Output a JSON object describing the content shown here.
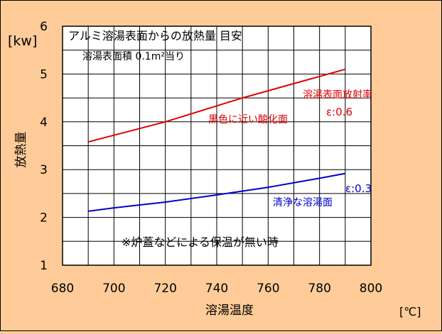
{
  "chart_data": {
    "type": "line",
    "title": "アルミ溶湯表面からの放熱量 目安",
    "subtitle": "溶湯表面積 0.1m²当り",
    "xlabel": "溶湯温度",
    "xunit": "[℃]",
    "ylabel": "放熱量",
    "yunit": "[kw]",
    "xlim": [
      680,
      800
    ],
    "ylim": [
      1,
      6
    ],
    "xticks": [
      680,
      700,
      720,
      740,
      760,
      780,
      800
    ],
    "yticks": [
      1,
      2,
      3,
      4,
      5,
      6
    ],
    "grid": true,
    "plot_background": "#ffffff",
    "page_background": "#ffcc99",
    "legend_title": "溶湯表面放射率",
    "note": "※炉蓋などによる保温が無い時",
    "series": [
      {
        "name": "黒色に近い酸化面",
        "emissivity_label": "ε:0.6",
        "color": "#e00000",
        "x": [
          690,
          720,
          750,
          770,
          790
        ],
        "y": [
          3.58,
          4.0,
          4.5,
          4.8,
          5.1
        ]
      },
      {
        "name": "清浄な溶湯面",
        "emissivity_label": "ε:0.3",
        "color": "#0000cc",
        "x": [
          690,
          700,
          720,
          740,
          760,
          780,
          790
        ],
        "y": [
          2.13,
          2.2,
          2.32,
          2.47,
          2.63,
          2.82,
          2.92
        ]
      }
    ]
  }
}
